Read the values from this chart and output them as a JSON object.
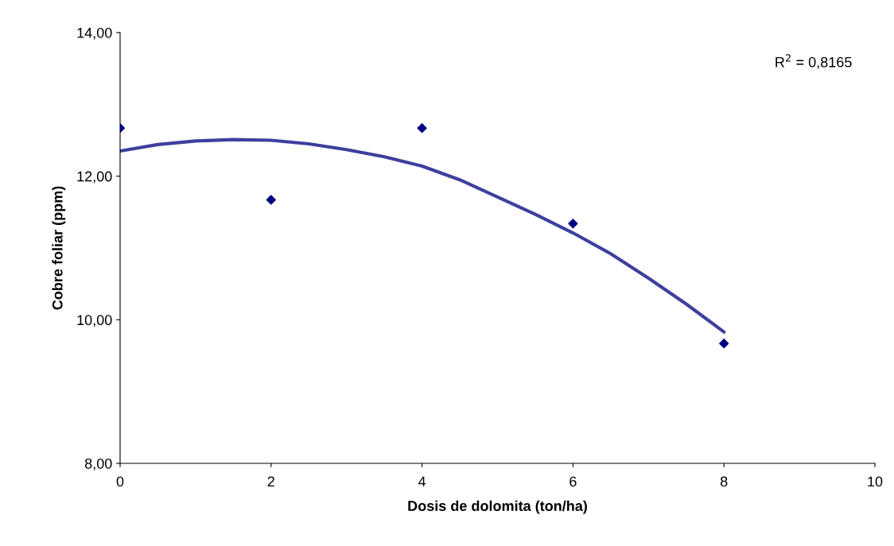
{
  "chart_data": {
    "type": "scatter",
    "xlabel": "Dosis de dolomita (ton/ha)",
    "ylabel": "Cobre foliar (ppm)",
    "x": [
      0,
      2,
      4,
      6,
      8
    ],
    "series": [
      {
        "color": "#000080",
        "marker": "diamond",
        "values": [
          12.67,
          11.67,
          12.67,
          11.34,
          9.67
        ]
      },
      {
        "type": "line",
        "color": "#3f3f9f",
        "marker": "none",
        "line_style": "solid",
        "x": [
          0,
          0.5,
          1,
          1.5,
          2,
          2.5,
          3,
          3.5,
          4,
          4.5,
          5,
          5.5,
          6,
          6.5,
          7,
          7.5,
          8
        ],
        "values": [
          12.35,
          12.44,
          12.49,
          12.51,
          12.5,
          12.45,
          12.37,
          12.27,
          12.14,
          11.95,
          11.71,
          11.47,
          11.21,
          10.92,
          10.58,
          10.22,
          9.83
        ]
      }
    ],
    "annotations": [
      "R$^{2}$ = 0,8165"
    ],
    "xlim": [
      0,
      10
    ],
    "xticks": [
      0,
      2,
      4,
      6,
      8,
      10
    ],
    "ylim": [
      8,
      14
    ],
    "yticks": [
      {
        "value": 8,
        "label": "8,00"
      },
      {
        "value": 10,
        "label": "10,00"
      },
      {
        "value": 12,
        "label": "12,00"
      },
      {
        "value": 14,
        "label": "14,00"
      }
    ],
    "grid": false,
    "legend": false
  }
}
